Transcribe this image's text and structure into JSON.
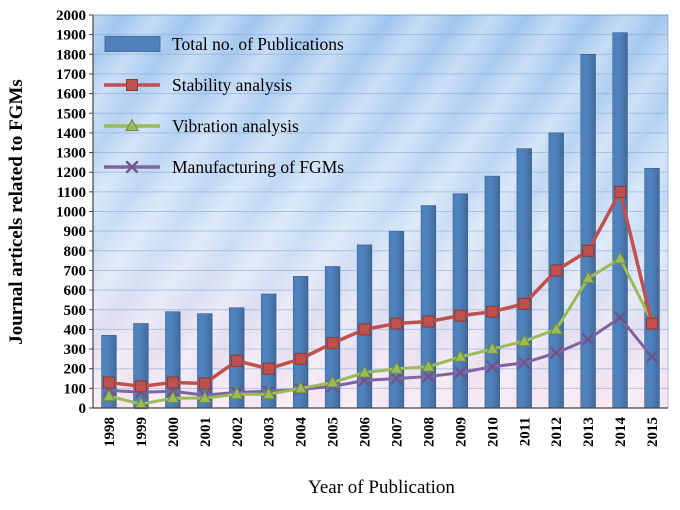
{
  "chart_data": {
    "type": "bar",
    "subtype": "bar+line combo",
    "title": "",
    "xlabel": "Year of Publication",
    "ylabel": "Journal articels related to FGMs",
    "ylim": [
      0,
      2000
    ],
    "ytick_step": 100,
    "grid": true,
    "legend_position": "top-left",
    "categories": [
      "1998",
      "1999",
      "2000",
      "2001",
      "2002",
      "2003",
      "2004",
      "2005",
      "2006",
      "2007",
      "2008",
      "2009",
      "2010",
      "2011",
      "2012",
      "2013",
      "2014",
      "2015"
    ],
    "series": [
      {
        "name": "Total no. of Publications",
        "type": "bar",
        "marker": "none",
        "color": "#4f81bd",
        "values": [
          370,
          430,
          490,
          480,
          510,
          580,
          670,
          720,
          830,
          900,
          1030,
          1090,
          1180,
          1320,
          1400,
          1800,
          1910,
          1220
        ]
      },
      {
        "name": "Stability analysis",
        "type": "line",
        "marker": "square",
        "color": "#c0504d",
        "values": [
          130,
          110,
          130,
          125,
          240,
          200,
          250,
          330,
          400,
          430,
          440,
          470,
          490,
          530,
          700,
          800,
          1100,
          430
        ]
      },
      {
        "name": "Vibration analysis",
        "type": "line",
        "marker": "triangle",
        "color": "#9bbb59",
        "values": [
          60,
          20,
          50,
          50,
          70,
          70,
          100,
          130,
          180,
          200,
          210,
          260,
          300,
          340,
          400,
          660,
          760,
          440
        ]
      },
      {
        "name": "Manufacturing of FGMs",
        "type": "line",
        "marker": "x",
        "color": "#8064a2",
        "values": [
          90,
          80,
          85,
          65,
          80,
          85,
          95,
          110,
          140,
          150,
          160,
          180,
          210,
          230,
          280,
          350,
          460,
          260
        ]
      }
    ],
    "plot_background": {
      "top_color": "#9fc5ee",
      "mid_color": "#cadef5",
      "bottom_color": "#f8e5f0"
    },
    "gridline_color": "#82a5d7",
    "axis_color": "#444444",
    "tick_label_color": "#000000"
  }
}
